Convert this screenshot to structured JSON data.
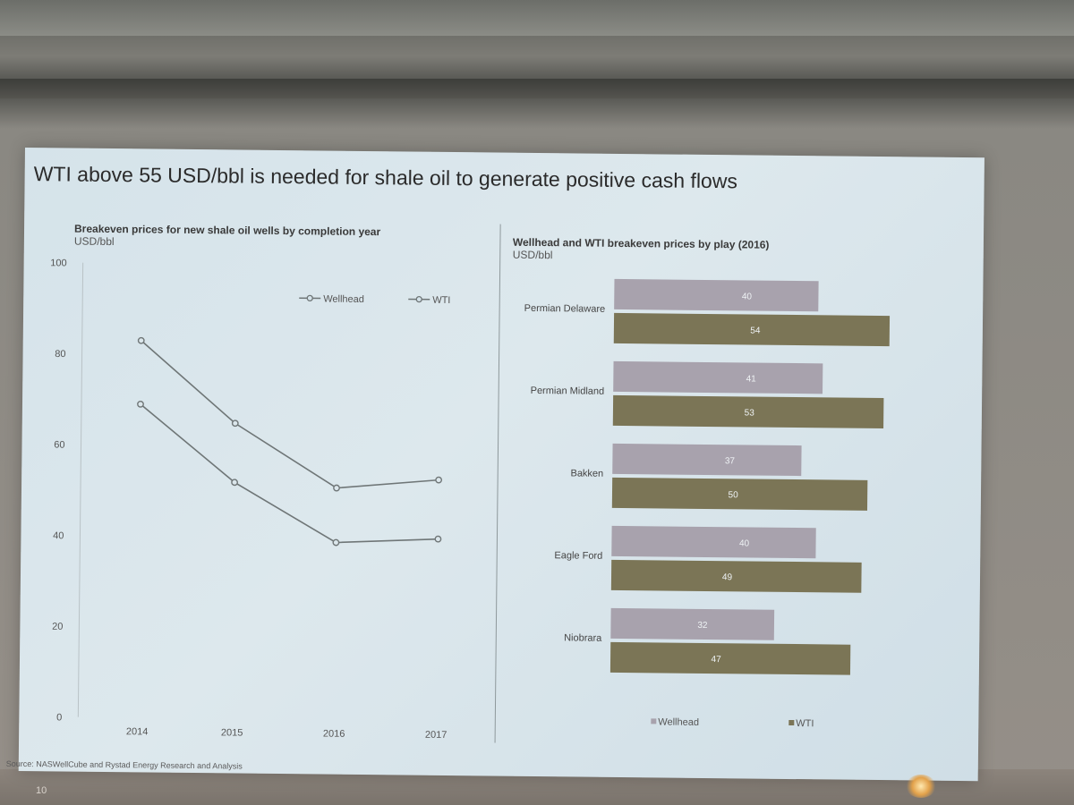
{
  "slide": {
    "title": "WTI above 55 USD/bbl is needed for shale oil to generate positive cash flows",
    "source": "Source: NASWellCube and Rystad Energy Research and Analysis",
    "page_number": "10"
  },
  "colors": {
    "wellhead": "#a8a2ad",
    "wti": "#7b7556",
    "line": "#6f7677",
    "text": "#3a3a3a"
  },
  "chart_data": [
    {
      "type": "line",
      "title": "Breakeven prices for new shale oil wells by completion year",
      "ylabel": "USD/bbl",
      "x": [
        "2014",
        "2015",
        "2016",
        "2017"
      ],
      "ylim": [
        0,
        100
      ],
      "yticks": [
        0,
        20,
        40,
        60,
        80,
        100
      ],
      "grid": false,
      "legend_position": "top-right",
      "series": [
        {
          "name": "Wellhead",
          "values": [
            69,
            52,
            39,
            40
          ]
        },
        {
          "name": "WTI",
          "values": [
            83,
            65,
            51,
            53
          ]
        }
      ]
    },
    {
      "type": "bar",
      "orientation": "horizontal",
      "title": "Wellhead and WTI breakeven prices by play (2016)",
      "ylabel": "USD/bbl",
      "categories": [
        "Permian Delaware",
        "Permian Midland",
        "Bakken",
        "Eagle Ford",
        "Niobrara"
      ],
      "legend_position": "bottom",
      "series": [
        {
          "name": "Wellhead",
          "values": [
            40,
            41,
            37,
            40,
            32
          ]
        },
        {
          "name": "WTI",
          "values": [
            54,
            53,
            50,
            49,
            47
          ]
        }
      ]
    }
  ]
}
